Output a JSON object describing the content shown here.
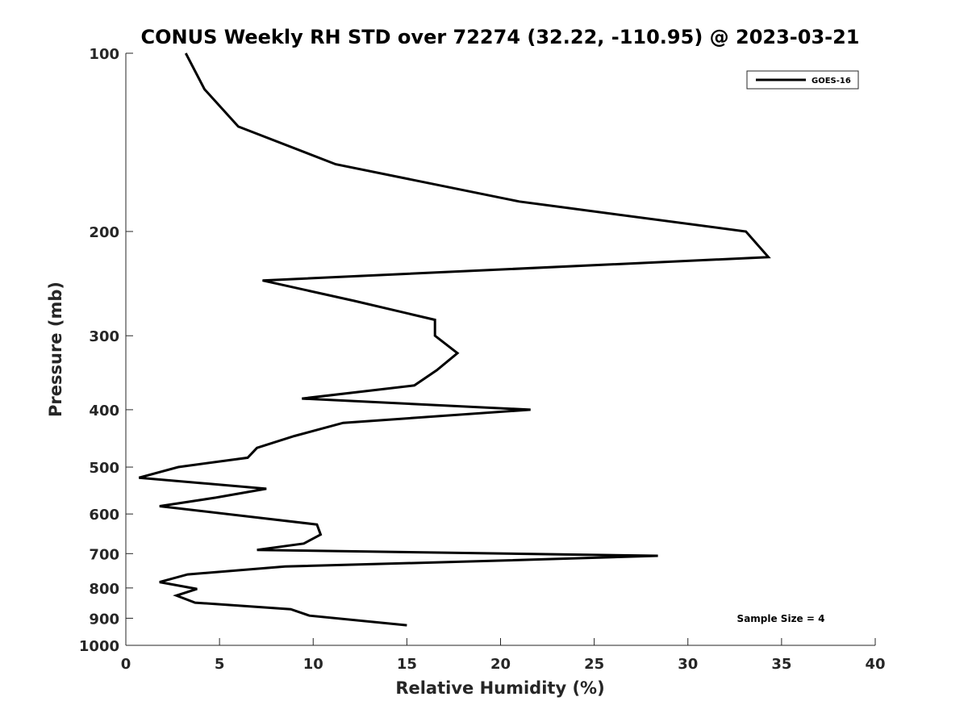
{
  "chart_data": {
    "type": "line",
    "title": "CONUS Weekly RH STD over 72274 (32.22, -110.95) @ 2023-03-21",
    "xlabel": "Relative Humidity (%)",
    "ylabel": "Pressure (mb)",
    "xlim": [
      0,
      40
    ],
    "ylim": [
      100,
      1000
    ],
    "yscale": "log",
    "y_reversed": true,
    "xticks": [
      0,
      5,
      10,
      15,
      20,
      25,
      30,
      35,
      40
    ],
    "xtick_labels": [
      "0",
      "5",
      "10",
      "15",
      "20",
      "25",
      "30",
      "35",
      "40"
    ],
    "yticks": [
      100,
      200,
      300,
      400,
      500,
      600,
      700,
      800,
      900,
      1000
    ],
    "ytick_labels": [
      "100",
      "200",
      "300",
      "400",
      "500",
      "600",
      "700",
      "800",
      "900",
      "1000"
    ],
    "grid": false,
    "legend": {
      "position": "top-right",
      "entries": [
        "GOES-16"
      ]
    },
    "annotation": "Sample Size = 4",
    "line_color": "#000000",
    "series": [
      {
        "name": "GOES-16",
        "points": [
          [
            3.2,
            100
          ],
          [
            4.2,
            115
          ],
          [
            6.0,
            133
          ],
          [
            11.2,
            154
          ],
          [
            21.0,
            178
          ],
          [
            33.1,
            200
          ],
          [
            34.3,
            221
          ],
          [
            7.3,
            242
          ],
          [
            12.2,
            262
          ],
          [
            16.5,
            282
          ],
          [
            16.5,
            300
          ],
          [
            17.7,
            321
          ],
          [
            16.6,
            343
          ],
          [
            15.4,
            364
          ],
          [
            9.4,
            383
          ],
          [
            21.6,
            400
          ],
          [
            11.6,
            421
          ],
          [
            9.0,
            443
          ],
          [
            7.0,
            464
          ],
          [
            6.5,
            482
          ],
          [
            2.8,
            500
          ],
          [
            0.7,
            521
          ],
          [
            7.5,
            544
          ],
          [
            4.8,
            563
          ],
          [
            1.8,
            582
          ],
          [
            10.2,
            625
          ],
          [
            10.4,
            650
          ],
          [
            9.5,
            673
          ],
          [
            7.0,
            690
          ],
          [
            28.4,
            706
          ],
          [
            19.5,
            720
          ],
          [
            8.5,
            736
          ],
          [
            3.3,
            759
          ],
          [
            1.8,
            782
          ],
          [
            3.8,
            803
          ],
          [
            2.7,
            824
          ],
          [
            3.7,
            847
          ],
          [
            8.8,
            869
          ],
          [
            9.8,
            891
          ],
          [
            15.0,
            925
          ]
        ]
      }
    ]
  }
}
